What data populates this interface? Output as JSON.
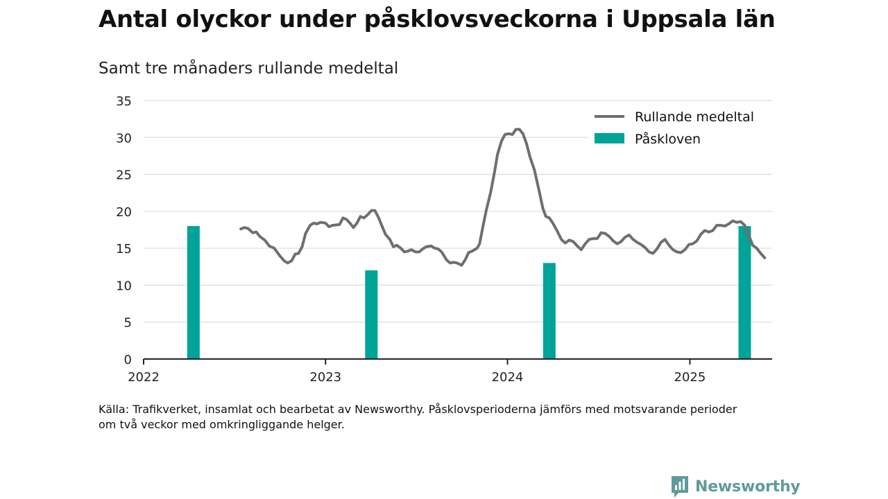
{
  "header": {
    "title": "Antal olyckor under påsklovsveckorna i Uppsala län",
    "subtitle": "Samt tre månaders rullande medeltal"
  },
  "footer": {
    "source_line1": "Källa: Trafikverket, insamlat och bearbetat av Newsworthy. Påsklovsperioderna jämförs med motsvarande perioder",
    "source_line2": "om två veckor med omkringliggande helger."
  },
  "brand": {
    "name": "Newsworthy",
    "icon": "newsworthy-logo-icon",
    "color": "#5f9b9b"
  },
  "chart_data": {
    "type": "bar",
    "x_range": [
      "2022-01-01",
      "2025-06-15"
    ],
    "x_ticks": [
      {
        "date": "2022-01-01",
        "label": "2022"
      },
      {
        "date": "2023-01-01",
        "label": "2023"
      },
      {
        "date": "2024-01-01",
        "label": "2024"
      },
      {
        "date": "2025-01-01",
        "label": "2025"
      }
    ],
    "y_range": [
      0,
      35
    ],
    "y_ticks": [
      0,
      5,
      10,
      15,
      20,
      25,
      30,
      35
    ],
    "grid": true,
    "legend_position": "top-right",
    "colors": {
      "line": "#6f6e73",
      "bars": "#00a398",
      "grid": "#dddddd",
      "axis": "#222222"
    },
    "series": [
      {
        "name": "Påskloven",
        "type": "bar",
        "points": [
          {
            "date": "2022-04-11",
            "value": 18
          },
          {
            "date": "2023-04-03",
            "value": 12
          },
          {
            "date": "2024-03-25",
            "value": 13
          },
          {
            "date": "2025-04-21",
            "value": 18
          }
        ]
      },
      {
        "name": "Rullande medeltal",
        "type": "line",
        "points": [
          {
            "date": "2022-07-15",
            "value": 17.6
          },
          {
            "date": "2022-07-22",
            "value": 17.8
          },
          {
            "date": "2022-07-29",
            "value": 17.7
          },
          {
            "date": "2022-08-08",
            "value": 17.1
          },
          {
            "date": "2022-08-15",
            "value": 17.2
          },
          {
            "date": "2022-08-22",
            "value": 16.6
          },
          {
            "date": "2022-09-01",
            "value": 16.1
          },
          {
            "date": "2022-09-10",
            "value": 15.3
          },
          {
            "date": "2022-09-20",
            "value": 15.0
          },
          {
            "date": "2022-10-01",
            "value": 14.0
          },
          {
            "date": "2022-10-10",
            "value": 13.3
          },
          {
            "date": "2022-10-17",
            "value": 13.0
          },
          {
            "date": "2022-10-25",
            "value": 13.3
          },
          {
            "date": "2022-11-01",
            "value": 14.2
          },
          {
            "date": "2022-11-08",
            "value": 14.3
          },
          {
            "date": "2022-11-15",
            "value": 15.2
          },
          {
            "date": "2022-11-22",
            "value": 17.0
          },
          {
            "date": "2022-12-01",
            "value": 18.1
          },
          {
            "date": "2022-12-08",
            "value": 18.4
          },
          {
            "date": "2022-12-15",
            "value": 18.3
          },
          {
            "date": "2022-12-22",
            "value": 18.5
          },
          {
            "date": "2023-01-01",
            "value": 18.4
          },
          {
            "date": "2023-01-08",
            "value": 17.9
          },
          {
            "date": "2023-01-15",
            "value": 18.1
          },
          {
            "date": "2023-01-29",
            "value": 18.2
          },
          {
            "date": "2023-02-05",
            "value": 19.1
          },
          {
            "date": "2023-02-12",
            "value": 18.9
          },
          {
            "date": "2023-02-19",
            "value": 18.4
          },
          {
            "date": "2023-02-26",
            "value": 17.8
          },
          {
            "date": "2023-03-05",
            "value": 18.4
          },
          {
            "date": "2023-03-12",
            "value": 19.3
          },
          {
            "date": "2023-03-19",
            "value": 19.1
          },
          {
            "date": "2023-03-26",
            "value": 19.5
          },
          {
            "date": "2023-04-03",
            "value": 20.1
          },
          {
            "date": "2023-04-10",
            "value": 20.1
          },
          {
            "date": "2023-04-17",
            "value": 19.2
          },
          {
            "date": "2023-05-01",
            "value": 16.9
          },
          {
            "date": "2023-05-10",
            "value": 16.2
          },
          {
            "date": "2023-05-17",
            "value": 15.2
          },
          {
            "date": "2023-05-24",
            "value": 15.4
          },
          {
            "date": "2023-06-01",
            "value": 15.0
          },
          {
            "date": "2023-06-08",
            "value": 14.5
          },
          {
            "date": "2023-06-15",
            "value": 14.6
          },
          {
            "date": "2023-06-22",
            "value": 14.8
          },
          {
            "date": "2023-07-01",
            "value": 14.5
          },
          {
            "date": "2023-07-08",
            "value": 14.5
          },
          {
            "date": "2023-07-15",
            "value": 14.9
          },
          {
            "date": "2023-07-22",
            "value": 15.2
          },
          {
            "date": "2023-08-01",
            "value": 15.3
          },
          {
            "date": "2023-08-08",
            "value": 15.0
          },
          {
            "date": "2023-08-15",
            "value": 14.9
          },
          {
            "date": "2023-08-22",
            "value": 14.5
          },
          {
            "date": "2023-09-01",
            "value": 13.4
          },
          {
            "date": "2023-09-08",
            "value": 13.0
          },
          {
            "date": "2023-09-15",
            "value": 13.1
          },
          {
            "date": "2023-09-22",
            "value": 13.0
          },
          {
            "date": "2023-10-01",
            "value": 12.7
          },
          {
            "date": "2023-10-08",
            "value": 13.4
          },
          {
            "date": "2023-10-15",
            "value": 14.4
          },
          {
            "date": "2023-10-22",
            "value": 14.6
          },
          {
            "date": "2023-11-01",
            "value": 15.0
          },
          {
            "date": "2023-11-06",
            "value": 15.6
          },
          {
            "date": "2023-11-12",
            "value": 17.7
          },
          {
            "date": "2023-11-20",
            "value": 20.3
          },
          {
            "date": "2023-11-28",
            "value": 22.5
          },
          {
            "date": "2023-12-06",
            "value": 25.3
          },
          {
            "date": "2023-12-12",
            "value": 27.7
          },
          {
            "date": "2023-12-20",
            "value": 29.5
          },
          {
            "date": "2023-12-27",
            "value": 30.4
          },
          {
            "date": "2024-01-04",
            "value": 30.5
          },
          {
            "date": "2024-01-11",
            "value": 30.4
          },
          {
            "date": "2024-01-18",
            "value": 31.1
          },
          {
            "date": "2024-01-25",
            "value": 31.1
          },
          {
            "date": "2024-02-01",
            "value": 30.5
          },
          {
            "date": "2024-02-08",
            "value": 29.2
          },
          {
            "date": "2024-02-15",
            "value": 27.4
          },
          {
            "date": "2024-02-24",
            "value": 25.6
          },
          {
            "date": "2024-03-04",
            "value": 22.9
          },
          {
            "date": "2024-03-12",
            "value": 20.4
          },
          {
            "date": "2024-03-18",
            "value": 19.3
          },
          {
            "date": "2024-03-25",
            "value": 19.1
          },
          {
            "date": "2024-04-01",
            "value": 18.4
          },
          {
            "date": "2024-04-10",
            "value": 17.3
          },
          {
            "date": "2024-04-18",
            "value": 16.2
          },
          {
            "date": "2024-04-26",
            "value": 15.7
          },
          {
            "date": "2024-05-04",
            "value": 16.1
          },
          {
            "date": "2024-05-12",
            "value": 15.9
          },
          {
            "date": "2024-05-20",
            "value": 15.3
          },
          {
            "date": "2024-05-28",
            "value": 14.8
          },
          {
            "date": "2024-06-05",
            "value": 15.6
          },
          {
            "date": "2024-06-13",
            "value": 16.2
          },
          {
            "date": "2024-06-21",
            "value": 16.3
          },
          {
            "date": "2024-06-29",
            "value": 16.3
          },
          {
            "date": "2024-07-07",
            "value": 17.1
          },
          {
            "date": "2024-07-15",
            "value": 17.0
          },
          {
            "date": "2024-07-23",
            "value": 16.6
          },
          {
            "date": "2024-07-31",
            "value": 16.0
          },
          {
            "date": "2024-08-08",
            "value": 15.6
          },
          {
            "date": "2024-08-16",
            "value": 15.9
          },
          {
            "date": "2024-08-24",
            "value": 16.5
          },
          {
            "date": "2024-09-01",
            "value": 16.8
          },
          {
            "date": "2024-09-09",
            "value": 16.2
          },
          {
            "date": "2024-09-17",
            "value": 15.8
          },
          {
            "date": "2024-09-25",
            "value": 15.5
          },
          {
            "date": "2024-10-03",
            "value": 15.1
          },
          {
            "date": "2024-10-11",
            "value": 14.5
          },
          {
            "date": "2024-10-19",
            "value": 14.3
          },
          {
            "date": "2024-10-27",
            "value": 14.9
          },
          {
            "date": "2024-11-04",
            "value": 15.8
          },
          {
            "date": "2024-11-12",
            "value": 16.2
          },
          {
            "date": "2024-11-20",
            "value": 15.4
          },
          {
            "date": "2024-11-28",
            "value": 14.8
          },
          {
            "date": "2024-12-06",
            "value": 14.5
          },
          {
            "date": "2024-12-14",
            "value": 14.4
          },
          {
            "date": "2024-12-22",
            "value": 14.8
          },
          {
            "date": "2024-12-30",
            "value": 15.5
          },
          {
            "date": "2025-01-07",
            "value": 15.6
          },
          {
            "date": "2025-01-15",
            "value": 16.0
          },
          {
            "date": "2025-01-23",
            "value": 16.9
          },
          {
            "date": "2025-01-31",
            "value": 17.4
          },
          {
            "date": "2025-02-08",
            "value": 17.2
          },
          {
            "date": "2025-02-16",
            "value": 17.4
          },
          {
            "date": "2025-02-24",
            "value": 18.1
          },
          {
            "date": "2025-03-04",
            "value": 18.1
          },
          {
            "date": "2025-03-12",
            "value": 18.0
          },
          {
            "date": "2025-03-20",
            "value": 18.3
          },
          {
            "date": "2025-03-28",
            "value": 18.7
          },
          {
            "date": "2025-04-05",
            "value": 18.5
          },
          {
            "date": "2025-04-13",
            "value": 18.6
          },
          {
            "date": "2025-04-21",
            "value": 18.1
          },
          {
            "date": "2025-04-29",
            "value": 16.8
          },
          {
            "date": "2025-05-07",
            "value": 15.4
          },
          {
            "date": "2025-05-15",
            "value": 15.0
          },
          {
            "date": "2025-05-23",
            "value": 14.3
          },
          {
            "date": "2025-05-31",
            "value": 13.7
          }
        ]
      }
    ]
  }
}
